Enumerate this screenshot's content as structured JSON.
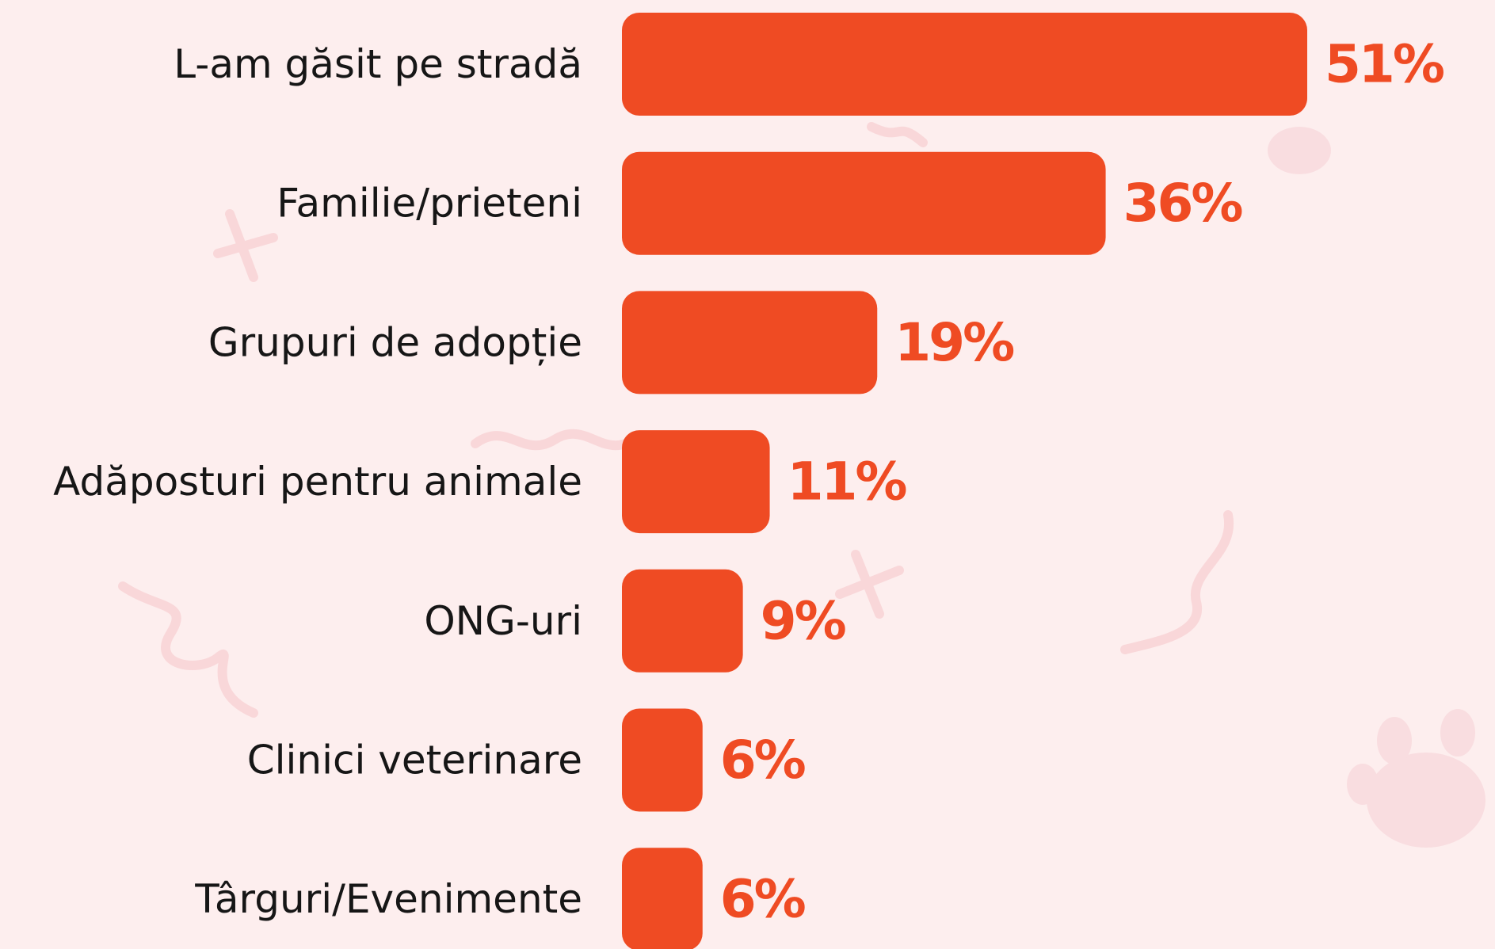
{
  "chart_data": {
    "type": "bar",
    "orientation": "horizontal",
    "categories": [
      "L-am găsit pe stradă",
      "Familie/prieteni",
      "Grupuri de adopție",
      "Adăposturi pentru animale",
      "ONG-uri",
      "Clinici veterinare",
      "Târguri/Evenimente"
    ],
    "values": [
      51,
      36,
      19,
      11,
      9,
      6,
      6
    ],
    "value_labels": [
      "51%",
      "36%",
      "19%",
      "11%",
      "9%",
      "6%",
      "6%"
    ],
    "color": "#ef4b23"
  }
}
